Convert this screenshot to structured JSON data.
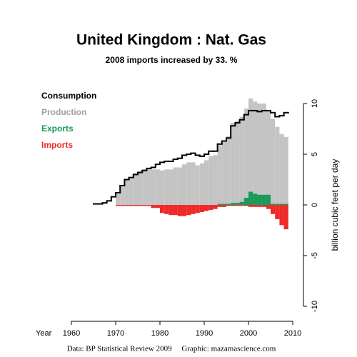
{
  "chart_data": {
    "type": "bar",
    "title": "United Kingdom :  Nat. Gas",
    "subtitle": "2008 imports increased by 33. %",
    "x_label": "Year",
    "y_label": "billion cubic feet per day",
    "footer": "Data: BP Statistical Review 2009     Graphic: mazamascience.com",
    "x": [
      1965,
      1966,
      1967,
      1968,
      1969,
      1970,
      1971,
      1972,
      1973,
      1974,
      1975,
      1976,
      1977,
      1978,
      1979,
      1980,
      1981,
      1982,
      1983,
      1984,
      1985,
      1986,
      1987,
      1988,
      1989,
      1990,
      1991,
      1992,
      1993,
      1994,
      1995,
      1996,
      1997,
      1998,
      1999,
      2000,
      2001,
      2002,
      2003,
      2004,
      2005,
      2006,
      2007,
      2008
    ],
    "series": [
      {
        "name": "Consumption",
        "color": "#000000",
        "values": [
          0.1,
          0.1,
          0.2,
          0.4,
          0.8,
          1.2,
          1.9,
          2.5,
          2.7,
          3.0,
          3.2,
          3.4,
          3.6,
          3.7,
          4.0,
          4.2,
          4.3,
          4.3,
          4.5,
          4.6,
          4.9,
          5.0,
          5.1,
          4.9,
          4.8,
          5.0,
          5.3,
          5.3,
          6.0,
          6.3,
          6.6,
          7.8,
          8.1,
          8.4,
          8.9,
          9.3,
          9.3,
          9.2,
          9.3,
          9.3,
          9.1,
          8.7,
          8.8,
          9.1
        ]
      },
      {
        "name": "Production",
        "color": "#c4c4c4",
        "values": [
          null,
          null,
          null,
          null,
          null,
          1.1,
          1.8,
          2.5,
          2.6,
          3.1,
          3.3,
          3.5,
          3.6,
          3.5,
          3.5,
          3.4,
          3.5,
          3.5,
          3.7,
          3.7,
          4.0,
          4.2,
          4.2,
          3.9,
          4.1,
          4.4,
          4.8,
          4.9,
          5.9,
          6.2,
          6.8,
          8.1,
          8.3,
          8.7,
          9.5,
          10.5,
          10.2,
          10.0,
          10.0,
          9.3,
          8.5,
          7.7,
          7.0,
          6.7
        ]
      },
      {
        "name": "Exports",
        "color": "#1a9a5a",
        "values": [
          null,
          null,
          null,
          null,
          null,
          null,
          null,
          null,
          null,
          null,
          null,
          null,
          null,
          null,
          null,
          null,
          null,
          null,
          null,
          null,
          null,
          null,
          null,
          null,
          null,
          null,
          null,
          null,
          0.1,
          0.1,
          0.1,
          0.2,
          0.2,
          0.3,
          0.7,
          1.3,
          1.1,
          1.0,
          1.0,
          1.0,
          0.1,
          0.1,
          0.1,
          0.1
        ]
      },
      {
        "name": "Imports",
        "color": "#ee2a2a",
        "values": [
          null,
          null,
          null,
          null,
          null,
          -0.1,
          -0.1,
          -0.1,
          -0.1,
          -0.1,
          -0.1,
          -0.1,
          -0.1,
          -0.3,
          -0.3,
          -0.8,
          -0.9,
          -1.0,
          -1.0,
          -1.1,
          -1.1,
          -1.0,
          -0.9,
          -0.8,
          -0.7,
          -0.6,
          -0.5,
          -0.4,
          -0.2,
          -0.2,
          -0.1,
          -0.1,
          -0.1,
          -0.1,
          -0.1,
          -0.2,
          -0.2,
          -0.2,
          -0.2,
          -0.4,
          -0.9,
          -1.4,
          -2.0,
          -2.4
        ]
      }
    ],
    "xlim": [
      1960,
      2010
    ],
    "xticks": [
      1960,
      1970,
      1980,
      1990,
      2000,
      2010
    ],
    "ylim": [
      -10,
      10
    ],
    "yticks": [
      -10,
      -5,
      0,
      5,
      10
    ]
  }
}
